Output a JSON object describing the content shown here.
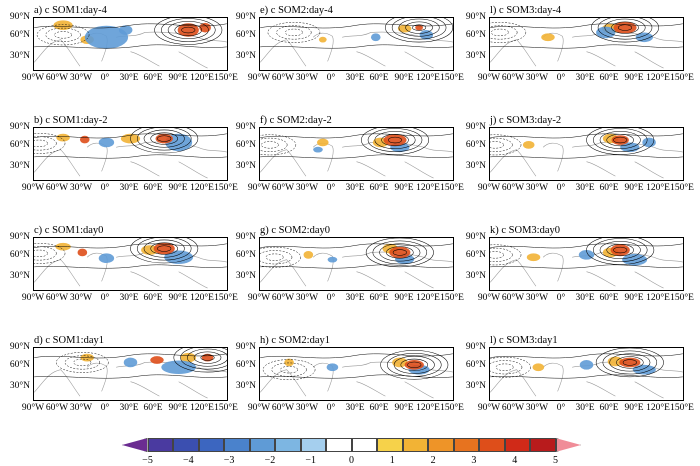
{
  "panels": [
    {
      "id": "a",
      "title": "a) c SOM1:day-4",
      "col": 0,
      "row": 0,
      "red": [
        [
          320,
          25,
          22,
          14
        ],
        [
          355,
          20,
          12,
          10
        ]
      ],
      "blue": [
        [
          150,
          40,
          45,
          24
        ],
        [
          190,
          25,
          14,
          10
        ]
      ],
      "orange": [
        [
          60,
          15,
          20,
          10
        ],
        [
          110,
          45,
          14,
          9
        ]
      ]
    },
    {
      "id": "b",
      "title": "b) c SOM1:day-2",
      "col": 0,
      "row": 1,
      "red": [
        [
          270,
          22,
          18,
          10
        ],
        [
          105,
          24,
          10,
          8
        ]
      ],
      "blue": [
        [
          300,
          30,
          28,
          18
        ],
        [
          150,
          30,
          16,
          10
        ]
      ],
      "orange": [
        [
          200,
          22,
          20,
          10
        ],
        [
          60,
          20,
          14,
          8
        ]
      ]
    },
    {
      "id": "c",
      "title": "c) c SOM1:day0",
      "col": 0,
      "row": 2,
      "red": [
        [
          270,
          22,
          22,
          12
        ],
        [
          100,
          30,
          10,
          8
        ]
      ],
      "blue": [
        [
          300,
          40,
          30,
          14
        ],
        [
          150,
          42,
          16,
          10
        ]
      ],
      "orange": [
        [
          240,
          25,
          18,
          10
        ],
        [
          60,
          18,
          16,
          8
        ]
      ]
    },
    {
      "id": "d",
      "title": "d) c SOM1:day1",
      "col": 0,
      "row": 3,
      "red": [
        [
          360,
          20,
          12,
          8
        ],
        [
          255,
          25,
          14,
          8
        ]
      ],
      "blue": [
        [
          300,
          40,
          36,
          14
        ],
        [
          200,
          30,
          14,
          10
        ]
      ],
      "orange": [
        [
          320,
          20,
          16,
          10
        ],
        [
          110,
          20,
          14,
          8
        ]
      ]
    },
    {
      "id": "e",
      "title": "e) c SOM2:day-4",
      "col": 1,
      "row": 0,
      "red": [
        [
          330,
          20,
          8,
          6
        ]
      ],
      "blue": [
        [
          345,
          35,
          14,
          10
        ],
        [
          240,
          40,
          10,
          8
        ]
      ],
      "orange": [
        [
          300,
          22,
          14,
          8
        ],
        [
          130,
          45,
          8,
          6
        ]
      ]
    },
    {
      "id": "f",
      "title": "f) c SOM2:day-2",
      "col": 1,
      "row": 1,
      "red": [
        [
          280,
          25,
          24,
          12
        ]
      ],
      "blue": [
        [
          290,
          40,
          20,
          10
        ],
        [
          120,
          45,
          10,
          6
        ]
      ],
      "orange": [
        [
          250,
          30,
          16,
          10
        ],
        [
          130,
          30,
          12,
          8
        ]
      ]
    },
    {
      "id": "g",
      "title": "g) c SOM2:day0",
      "col": 1,
      "row": 2,
      "red": [
        [
          290,
          30,
          22,
          12
        ]
      ],
      "blue": [
        [
          300,
          44,
          20,
          10
        ],
        [
          150,
          45,
          10,
          6
        ]
      ],
      "orange": [
        [
          270,
          22,
          16,
          10
        ],
        [
          100,
          35,
          10,
          8
        ]
      ]
    },
    {
      "id": "h",
      "title": "h) c SOM2:day1",
      "col": 1,
      "row": 3,
      "red": [
        [
          320,
          35,
          20,
          10
        ]
      ],
      "blue": [
        [
          330,
          45,
          22,
          10
        ],
        [
          150,
          40,
          12,
          8
        ]
      ],
      "orange": [
        [
          290,
          30,
          16,
          10
        ],
        [
          60,
          30,
          10,
          8
        ]
      ]
    },
    {
      "id": "l",
      "title": "l) c SOM3:day-4",
      "col": 2,
      "row": 0,
      "red": [
        [
          280,
          20,
          24,
          12
        ]
      ],
      "blue": [
        [
          240,
          30,
          20,
          12
        ],
        [
          320,
          40,
          18,
          10
        ]
      ],
      "orange": [
        [
          250,
          22,
          18,
          10
        ],
        [
          120,
          40,
          14,
          8
        ]
      ]
    },
    {
      "id": "j",
      "title": "j) c SOM3:day-2",
      "col": 2,
      "row": 1,
      "red": [
        [
          270,
          25,
          18,
          10
        ]
      ],
      "blue": [
        [
          290,
          40,
          20,
          10
        ],
        [
          330,
          30,
          14,
          10
        ]
      ],
      "orange": [
        [
          250,
          22,
          16,
          10
        ],
        [
          80,
          35,
          12,
          8
        ]
      ]
    },
    {
      "id": "k",
      "title": "k) c SOM3:day0",
      "col": 2,
      "row": 2,
      "red": [
        [
          270,
          25,
          20,
          12
        ]
      ],
      "blue": [
        [
          300,
          45,
          26,
          12
        ],
        [
          200,
          35,
          16,
          10
        ]
      ],
      "orange": [
        [
          250,
          30,
          16,
          10
        ],
        [
          90,
          40,
          14,
          8
        ]
      ]
    },
    {
      "id": "l2",
      "title": "l) c SOM3:day1",
      "col": 2,
      "row": 3,
      "red": [
        [
          290,
          30,
          22,
          10
        ]
      ],
      "blue": [
        [
          320,
          45,
          24,
          10
        ],
        [
          200,
          35,
          14,
          10
        ]
      ],
      "orange": [
        [
          260,
          28,
          16,
          10
        ],
        [
          100,
          40,
          12,
          8
        ]
      ]
    }
  ],
  "lat_labels": [
    "90°N",
    "60°N",
    "30°N"
  ],
  "lon_labels": [
    "90°W",
    "60°W",
    "30°W",
    "0°",
    "30°E",
    "60°E",
    "90°E",
    "120°E",
    "150°E"
  ],
  "colorbar": {
    "ticks": [
      "−5",
      "−4",
      "−3",
      "−2",
      "−1",
      "0",
      "1",
      "2",
      "3",
      "4",
      "5"
    ],
    "colors": [
      "#6b2c91",
      "#4a3aa0",
      "#3b4fb0",
      "#3c66c0",
      "#4a82cc",
      "#5f9bd6",
      "#7db6e2",
      "#a5cfee",
      "#ffffff",
      "#ffffff",
      "#f6d24a",
      "#f2b335",
      "#ee9428",
      "#e7731f",
      "#de4e1a",
      "#d02a18",
      "#b81b1c",
      "#f08d98"
    ]
  }
}
